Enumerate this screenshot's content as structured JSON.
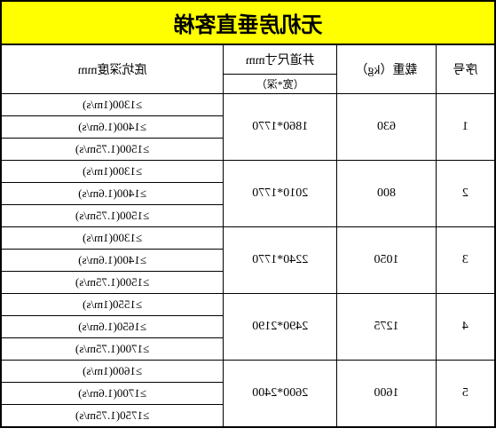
{
  "title": "无机房垂直客梯",
  "headers": {
    "serial": "序号",
    "load": "载重（kg）",
    "shaft": "井道尺寸mm",
    "shaft_sub": "（宽*深）",
    "depth": "底坑深度mm"
  },
  "rows": [
    {
      "serial": "1",
      "load": "630",
      "shaft": "1860*1770",
      "depths": [
        "≥1300(1m/s)",
        "≥1400(1.6m/s)",
        "≥1500(1.75m/s)"
      ]
    },
    {
      "serial": "2",
      "load": "800",
      "shaft": "2010*1770",
      "depths": [
        "≥1300(1m/s)",
        "≥1400(1.6m/s)",
        "≥1500(1.75m/s)"
      ]
    },
    {
      "serial": "3",
      "load": "1050",
      "shaft": "2240*1770",
      "depths": [
        "≥1300(1m/s)",
        "≥1400(1.6m/s)",
        "≥1500(1.75m/s)"
      ]
    },
    {
      "serial": "4",
      "load": "1275",
      "shaft": "2490*2190",
      "depths": [
        "≥1550(1m/s)",
        "≥1650(1.6m/s)",
        "≥1700(1.75m/s)"
      ]
    },
    {
      "serial": "5",
      "load": "1600",
      "shaft": "2600*2400",
      "depths": [
        "≥1600(1m/s)",
        "≥1700(1.6m/s)",
        "≥1750(1.75m/s)"
      ]
    }
  ],
  "colors": {
    "title_bg": "#ffff00",
    "border": "#000000",
    "background": "#ffffff",
    "text": "#000000"
  }
}
